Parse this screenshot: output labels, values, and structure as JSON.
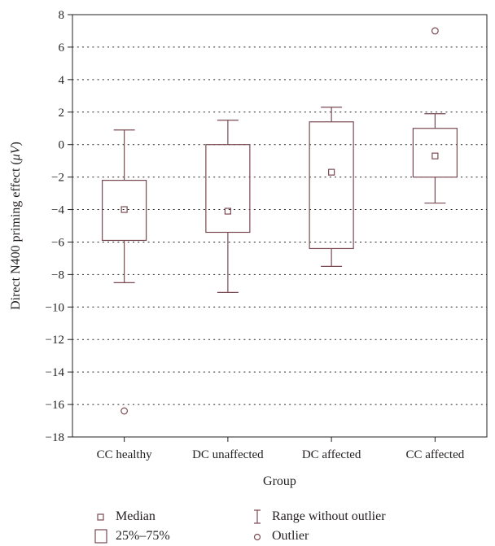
{
  "chart_data": {
    "type": "box",
    "xlabel": "Group",
    "ylabel_prefix": "Direct N400 priming effect (",
    "ylabel_unit": "μV",
    "ylabel_suffix": ")",
    "ylim": [
      -18,
      8
    ],
    "yticks": [
      8,
      6,
      4,
      2,
      0,
      -2,
      -4,
      -6,
      -8,
      -10,
      -12,
      -14,
      -16,
      -18
    ],
    "grid": "horizontal-dotted",
    "categories": [
      "CC healthy",
      "DC unaffected",
      "DC affected",
      "CC affected"
    ],
    "boxes": [
      {
        "category": "CC healthy",
        "whisker_low": -8.5,
        "q1": -5.9,
        "median": -4.0,
        "q3": -2.2,
        "whisker_high": 0.9,
        "outliers": [
          -16.4
        ]
      },
      {
        "category": "DC unaffected",
        "whisker_low": -9.1,
        "q1": -5.4,
        "median": -4.1,
        "q3": 0.0,
        "whisker_high": 1.5,
        "outliers": []
      },
      {
        "category": "DC affected",
        "whisker_low": -7.5,
        "q1": -6.4,
        "median": -1.7,
        "q3": 1.4,
        "whisker_high": 2.3,
        "outliers": []
      },
      {
        "category": "CC affected",
        "whisker_low": -3.6,
        "q1": -2.0,
        "median": -0.7,
        "q3": 1.0,
        "whisker_high": 1.9,
        "outliers": [
          7.0
        ]
      }
    ],
    "legend": {
      "median": "Median",
      "box": "25%–75%",
      "range": "Range without outlier",
      "outlier": "Outlier"
    },
    "colors": {
      "stroke": "#7a4a52",
      "axis": "#231f20",
      "grid": "#231f20"
    }
  }
}
